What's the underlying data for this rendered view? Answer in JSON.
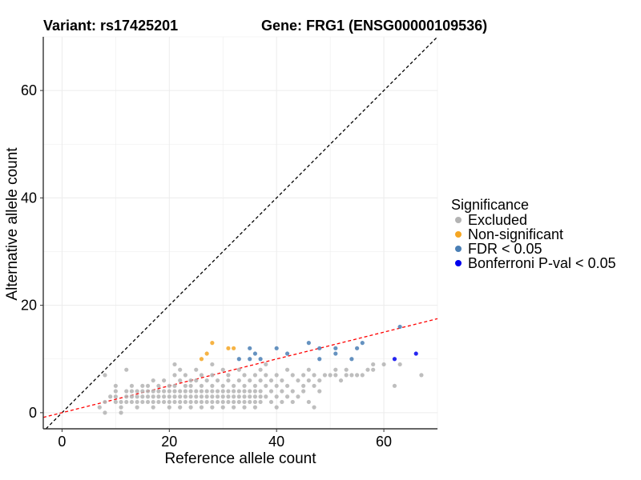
{
  "chart_data": {
    "type": "scatter",
    "title_left": "Variant: rs17425201",
    "title_right": "Gene: FRG1 (ENSG00000109536)",
    "xlabel": "Reference allele count",
    "ylabel": "Alternative allele count",
    "xlim": [
      -3.5,
      70
    ],
    "ylim": [
      -3,
      70
    ],
    "x_ticks": [
      0,
      20,
      40,
      60
    ],
    "y_ticks": [
      0,
      20,
      40,
      60
    ],
    "grid": true,
    "legend": {
      "title": "Significance",
      "position": "right",
      "items": [
        {
          "label": "Excluded",
          "color": "#b3b3b3"
        },
        {
          "label": "Non-significant",
          "color": "#f5a623"
        },
        {
          "label": "FDR < 0.05",
          "color": "#4a7fb5"
        },
        {
          "label": "Bonferroni P-val < 0.05",
          "color": "#0000ee"
        }
      ]
    },
    "reference_lines": [
      {
        "kind": "identity",
        "slope": 1,
        "intercept": 0,
        "style": "dashed",
        "color": "#000000"
      },
      {
        "kind": "fit",
        "slope": 0.25,
        "intercept": 0,
        "style": "dashed",
        "color": "#ff0000"
      }
    ],
    "series": [
      {
        "name": "Excluded",
        "color": "#b3b3b3",
        "points": [
          [
            7,
            1
          ],
          [
            8,
            7
          ],
          [
            8,
            0
          ],
          [
            8,
            2
          ],
          [
            9,
            3
          ],
          [
            10,
            5
          ],
          [
            10,
            4
          ],
          [
            10,
            3
          ],
          [
            10,
            2
          ],
          [
            11,
            2
          ],
          [
            11,
            1
          ],
          [
            11,
            0
          ],
          [
            12,
            8
          ],
          [
            12,
            4
          ],
          [
            12,
            3
          ],
          [
            12,
            2
          ],
          [
            13,
            5
          ],
          [
            13,
            4
          ],
          [
            13,
            3
          ],
          [
            13,
            2
          ],
          [
            14,
            4
          ],
          [
            14,
            3
          ],
          [
            14,
            2
          ],
          [
            14,
            1
          ],
          [
            15,
            5
          ],
          [
            15,
            4
          ],
          [
            15,
            3
          ],
          [
            15,
            2
          ],
          [
            16,
            5
          ],
          [
            16,
            4
          ],
          [
            16,
            3
          ],
          [
            16,
            2
          ],
          [
            17,
            6
          ],
          [
            17,
            4
          ],
          [
            17,
            3
          ],
          [
            17,
            2
          ],
          [
            17,
            1
          ],
          [
            18,
            5
          ],
          [
            18,
            4
          ],
          [
            18,
            3
          ],
          [
            18,
            2
          ],
          [
            19,
            6
          ],
          [
            19,
            4
          ],
          [
            19,
            3
          ],
          [
            19,
            2
          ],
          [
            20,
            5
          ],
          [
            20,
            4
          ],
          [
            20,
            3
          ],
          [
            20,
            2
          ],
          [
            20,
            1
          ],
          [
            21,
            9
          ],
          [
            21,
            7
          ],
          [
            21,
            5
          ],
          [
            21,
            4
          ],
          [
            21,
            3
          ],
          [
            21,
            2
          ],
          [
            22,
            8
          ],
          [
            22,
            6
          ],
          [
            22,
            4
          ],
          [
            22,
            3
          ],
          [
            22,
            2
          ],
          [
            22,
            1
          ],
          [
            23,
            7
          ],
          [
            23,
            5
          ],
          [
            23,
            4
          ],
          [
            23,
            3
          ],
          [
            23,
            2
          ],
          [
            24,
            6
          ],
          [
            24,
            5
          ],
          [
            24,
            4
          ],
          [
            24,
            3
          ],
          [
            24,
            2
          ],
          [
            24,
            1
          ],
          [
            25,
            8
          ],
          [
            25,
            6
          ],
          [
            25,
            4
          ],
          [
            25,
            3
          ],
          [
            25,
            2
          ],
          [
            26,
            7
          ],
          [
            26,
            5
          ],
          [
            26,
            4
          ],
          [
            26,
            3
          ],
          [
            26,
            2
          ],
          [
            26,
            1
          ],
          [
            27,
            6
          ],
          [
            27,
            4
          ],
          [
            27,
            3
          ],
          [
            27,
            2
          ],
          [
            28,
            9
          ],
          [
            28,
            7
          ],
          [
            28,
            5
          ],
          [
            28,
            4
          ],
          [
            28,
            3
          ],
          [
            28,
            2
          ],
          [
            28,
            1
          ],
          [
            29,
            6
          ],
          [
            29,
            4
          ],
          [
            29,
            3
          ],
          [
            29,
            2
          ],
          [
            30,
            8
          ],
          [
            30,
            5
          ],
          [
            30,
            4
          ],
          [
            30,
            3
          ],
          [
            30,
            2
          ],
          [
            30,
            1
          ],
          [
            31,
            7
          ],
          [
            31,
            6
          ],
          [
            31,
            4
          ],
          [
            31,
            3
          ],
          [
            31,
            2
          ],
          [
            32,
            5
          ],
          [
            32,
            4
          ],
          [
            32,
            3
          ],
          [
            32,
            2
          ],
          [
            32,
            1
          ],
          [
            33,
            8
          ],
          [
            33,
            6
          ],
          [
            33,
            4
          ],
          [
            33,
            3
          ],
          [
            33,
            2
          ],
          [
            34,
            7
          ],
          [
            34,
            5
          ],
          [
            34,
            4
          ],
          [
            34,
            3
          ],
          [
            34,
            2
          ],
          [
            34,
            1
          ],
          [
            35,
            6
          ],
          [
            35,
            4
          ],
          [
            35,
            3
          ],
          [
            35,
            2
          ],
          [
            36,
            7
          ],
          [
            36,
            5
          ],
          [
            36,
            4
          ],
          [
            36,
            3
          ],
          [
            36,
            2
          ],
          [
            36,
            1
          ],
          [
            37,
            8
          ],
          [
            37,
            6
          ],
          [
            37,
            4
          ],
          [
            37,
            3
          ],
          [
            37,
            2
          ],
          [
            38,
            9
          ],
          [
            38,
            7
          ],
          [
            38,
            5
          ],
          [
            38,
            3
          ],
          [
            39,
            6
          ],
          [
            39,
            4
          ],
          [
            39,
            2
          ],
          [
            40,
            7
          ],
          [
            40,
            5
          ],
          [
            40,
            3
          ],
          [
            40,
            1
          ],
          [
            41,
            6
          ],
          [
            41,
            4
          ],
          [
            41,
            2
          ],
          [
            42,
            8
          ],
          [
            42,
            5
          ],
          [
            42,
            3
          ],
          [
            43,
            7
          ],
          [
            43,
            4
          ],
          [
            43,
            2
          ],
          [
            44,
            6
          ],
          [
            44,
            3
          ],
          [
            45,
            7
          ],
          [
            45,
            5
          ],
          [
            45,
            4
          ],
          [
            46,
            8
          ],
          [
            46,
            6
          ],
          [
            46,
            2
          ],
          [
            47,
            7
          ],
          [
            47,
            5
          ],
          [
            47,
            1
          ],
          [
            48,
            6
          ],
          [
            48,
            4
          ],
          [
            49,
            7
          ],
          [
            50,
            7
          ],
          [
            51,
            7
          ],
          [
            51,
            8
          ],
          [
            52,
            6
          ],
          [
            53,
            7
          ],
          [
            53,
            8
          ],
          [
            54,
            7
          ],
          [
            55,
            7
          ],
          [
            56,
            7
          ],
          [
            57,
            8
          ],
          [
            58,
            9
          ],
          [
            58,
            8
          ],
          [
            60,
            9
          ],
          [
            62,
            5
          ],
          [
            63,
            9
          ],
          [
            67,
            7
          ]
        ]
      },
      {
        "name": "Non-significant",
        "color": "#f5a623",
        "points": [
          [
            26,
            10
          ],
          [
            27,
            11
          ],
          [
            28,
            13
          ],
          [
            31,
            12
          ],
          [
            32,
            12
          ]
        ]
      },
      {
        "name": "FDR < 0.05",
        "color": "#4a7fb5",
        "points": [
          [
            33,
            10
          ],
          [
            35,
            12
          ],
          [
            35,
            10
          ],
          [
            36,
            11
          ],
          [
            37,
            10
          ],
          [
            40,
            12
          ],
          [
            42,
            11
          ],
          [
            46,
            13
          ],
          [
            48,
            12
          ],
          [
            48,
            10
          ],
          [
            51,
            12
          ],
          [
            51,
            11
          ],
          [
            54,
            10
          ],
          [
            55,
            12
          ],
          [
            56,
            13
          ],
          [
            63,
            16
          ]
        ]
      },
      {
        "name": "Bonferroni P-val < 0.05",
        "color": "#0000ee",
        "points": [
          [
            62,
            10
          ],
          [
            66,
            11
          ]
        ]
      }
    ]
  }
}
